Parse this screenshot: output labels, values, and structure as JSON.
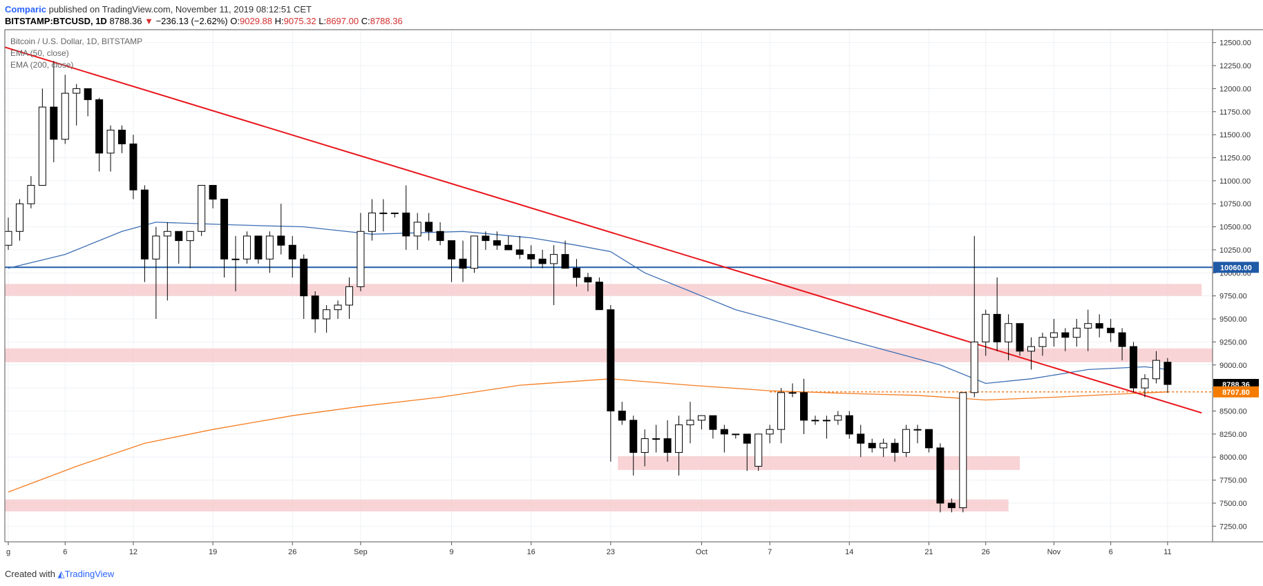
{
  "header": {
    "author": "Comparic",
    "published": "published on TradingView.com, November 11, 2019 08:12:51 CET",
    "symbol": "BITSTAMP:BTCUSD, 1D",
    "last": "8788.36",
    "change": "−236.13 (−2.62%)",
    "o_label": "O:",
    "o": "9029.88",
    "h_label": "H:",
    "h": "9075.32",
    "l_label": "L:",
    "l": "8697.00",
    "c_label": "C:",
    "c": "8788.36"
  },
  "footer": {
    "created": "Created with",
    "brand": "TradingView"
  },
  "colors": {
    "ema50": "#3c6eb4",
    "ema200": "#f57c20",
    "trend": "#e8151b",
    "hline": "#1f5aa6",
    "zone": "#f5c6c8",
    "bull": "#ffffff",
    "bear": "#000000",
    "last_tag": "#000000",
    "ema_tag": "#f57c00",
    "hline_tag": "#1f5aa6"
  },
  "chart_data": {
    "type": "candlestick",
    "title": "Bitcoin / U.S. Dollar, 1D, BITSTAMP",
    "legend": [
      "EMA (50, close)",
      "EMA (200, close)"
    ],
    "yaxis": {
      "ylim": [
        7080,
        12640
      ],
      "ticks": [
        "12500.00",
        "12250.00",
        "12000.00",
        "11750.00",
        "11500.00",
        "11250.00",
        "11000.00",
        "10750.00",
        "10500.00",
        "10250.00",
        "10000.00",
        "9750.00",
        "9500.00",
        "9250.00",
        "9000.00",
        "8750.00",
        "8500.00",
        "8250.00",
        "8000.00",
        "7750.00",
        "7500.00",
        "7250.00"
      ]
    },
    "xaxis": {
      "ticks": [
        {
          "label": "g",
          "day": 0
        },
        {
          "label": "6",
          "day": 5
        },
        {
          "label": "12",
          "day": 11
        },
        {
          "label": "19",
          "day": 18
        },
        {
          "label": "26",
          "day": 25
        },
        {
          "label": "Sep",
          "day": 31
        },
        {
          "label": "9",
          "day": 39
        },
        {
          "label": "16",
          "day": 46
        },
        {
          "label": "23",
          "day": 53
        },
        {
          "label": "Oct",
          "day": 61
        },
        {
          "label": "7",
          "day": 67
        },
        {
          "label": "14",
          "day": 74
        },
        {
          "label": "21",
          "day": 81
        },
        {
          "label": "26",
          "day": 86
        },
        {
          "label": "Nov",
          "day": 92
        },
        {
          "label": "6",
          "day": 97
        },
        {
          "label": "11",
          "day": 102
        }
      ]
    },
    "candles": [
      [
        10300,
        10600,
        10250,
        10450
      ],
      [
        10450,
        10800,
        10350,
        10750
      ],
      [
        10750,
        11050,
        10700,
        10950
      ],
      [
        10950,
        12000,
        10950,
        11800
      ],
      [
        11800,
        12300,
        11200,
        11450
      ],
      [
        11450,
        12150,
        11400,
        11950
      ],
      [
        11950,
        12050,
        11600,
        12000
      ],
      [
        12000,
        12000,
        11700,
        11880
      ],
      [
        11880,
        11900,
        11100,
        11300
      ],
      [
        11300,
        11600,
        11100,
        11550
      ],
      [
        11550,
        11600,
        11300,
        11400
      ],
      [
        11400,
        11500,
        10800,
        10900
      ],
      [
        10900,
        10950,
        9900,
        10150
      ],
      [
        10150,
        10500,
        9500,
        10400
      ],
      [
        10400,
        10550,
        9700,
        10450
      ],
      [
        10450,
        10450,
        10100,
        10350
      ],
      [
        10350,
        10400,
        10050,
        10450
      ],
      [
        10450,
        10950,
        10400,
        10950
      ],
      [
        10950,
        10950,
        10700,
        10800
      ],
      [
        10800,
        10800,
        9950,
        10150
      ],
      [
        10150,
        10400,
        9800,
        10150
      ],
      [
        10150,
        10450,
        10100,
        10400
      ],
      [
        10400,
        10400,
        10100,
        10150
      ],
      [
        10150,
        10450,
        10000,
        10400
      ],
      [
        10400,
        10750,
        10200,
        10300
      ],
      [
        10300,
        10400,
        9950,
        10150
      ],
      [
        10150,
        10200,
        9500,
        9750
      ],
      [
        9750,
        9800,
        9350,
        9500
      ],
      [
        9500,
        9650,
        9350,
        9600
      ],
      [
        9600,
        9700,
        9500,
        9650
      ],
      [
        9650,
        9950,
        9500,
        9850
      ],
      [
        9850,
        10650,
        9800,
        10450
      ],
      [
        10450,
        10800,
        10350,
        10650
      ],
      [
        10650,
        10800,
        10450,
        10650
      ],
      [
        10650,
        10650,
        10600,
        10650
      ],
      [
        10650,
        10950,
        10250,
        10400
      ],
      [
        10400,
        10650,
        10250,
        10550
      ],
      [
        10550,
        10650,
        10350,
        10450
      ],
      [
        10450,
        10550,
        10300,
        10350
      ],
      [
        10350,
        10350,
        9900,
        10150
      ],
      [
        10150,
        10350,
        9900,
        10050
      ],
      [
        10050,
        10400,
        10000,
        10400
      ],
      [
        10400,
        10450,
        10250,
        10350
      ],
      [
        10350,
        10450,
        10250,
        10300
      ],
      [
        10300,
        10400,
        10250,
        10250
      ],
      [
        10250,
        10400,
        10150,
        10200
      ],
      [
        10200,
        10300,
        10050,
        10150
      ],
      [
        10150,
        10250,
        10050,
        10100
      ],
      [
        10100,
        10300,
        9650,
        10200
      ],
      [
        10200,
        10350,
        10050,
        10050
      ],
      [
        10050,
        10150,
        9850,
        9950
      ],
      [
        9950,
        10000,
        9800,
        9900
      ],
      [
        9900,
        9950,
        9600,
        9600
      ],
      [
        9600,
        9650,
        7950,
        8500
      ],
      [
        8500,
        8600,
        8350,
        8400
      ],
      [
        8400,
        8450,
        7800,
        8050
      ],
      [
        8050,
        8300,
        7900,
        8200
      ],
      [
        8200,
        8350,
        8050,
        8200
      ],
      [
        8200,
        8400,
        7950,
        8050
      ],
      [
        8050,
        8450,
        7800,
        8350
      ],
      [
        8350,
        8600,
        8150,
        8400
      ],
      [
        8400,
        8450,
        8300,
        8450
      ],
      [
        8450,
        8450,
        8200,
        8300
      ],
      [
        8300,
        8350,
        8050,
        8250
      ],
      [
        8250,
        8250,
        8200,
        8250
      ],
      [
        8250,
        8250,
        7850,
        8150
      ],
      [
        7900,
        8200,
        7850,
        8250
      ],
      [
        8250,
        8350,
        8150,
        8300
      ],
      [
        8300,
        8750,
        8150,
        8700
      ],
      [
        8700,
        8800,
        8650,
        8700
      ],
      [
        8700,
        8850,
        8250,
        8400
      ],
      [
        8400,
        8450,
        8350,
        8400
      ],
      [
        8400,
        8450,
        8200,
        8400
      ],
      [
        8400,
        8500,
        8350,
        8450
      ],
      [
        8450,
        8500,
        8200,
        8250
      ],
      [
        8250,
        8350,
        8000,
        8150
      ],
      [
        8150,
        8200,
        8050,
        8100
      ],
      [
        8100,
        8200,
        8000,
        8150
      ],
      [
        8150,
        8200,
        7950,
        8050
      ],
      [
        8050,
        8350,
        8000,
        8300
      ],
      [
        8300,
        8350,
        8150,
        8300
      ],
      [
        8300,
        8300,
        8050,
        8100
      ],
      [
        8100,
        8150,
        7400,
        7500
      ],
      [
        7500,
        7550,
        7400,
        7450
      ],
      [
        7450,
        8700,
        7400,
        8700
      ],
      [
        8700,
        10400,
        8650,
        9250
      ],
      [
        9250,
        9600,
        9100,
        9550
      ],
      [
        9550,
        9950,
        9150,
        9250
      ],
      [
        9250,
        9550,
        9050,
        9450
      ],
      [
        9450,
        9450,
        9100,
        9150
      ],
      [
        9150,
        9300,
        8950,
        9200
      ],
      [
        9200,
        9350,
        9100,
        9300
      ],
      [
        9300,
        9500,
        9200,
        9350
      ],
      [
        9350,
        9400,
        9150,
        9300
      ],
      [
        9300,
        9500,
        9200,
        9400
      ],
      [
        9400,
        9600,
        9150,
        9450
      ],
      [
        9450,
        9550,
        9300,
        9400
      ],
      [
        9400,
        9500,
        9250,
        9350
      ],
      [
        9350,
        9400,
        9050,
        9200
      ],
      [
        9200,
        9250,
        8700,
        8750
      ],
      [
        8750,
        8900,
        8650,
        8850
      ],
      [
        8850,
        9150,
        8800,
        9050
      ],
      [
        9030,
        9075,
        8697,
        8788
      ]
    ],
    "ema50": [
      [
        0,
        10050
      ],
      [
        5,
        10200
      ],
      [
        10,
        10450
      ],
      [
        13,
        10550
      ],
      [
        20,
        10520
      ],
      [
        26,
        10500
      ],
      [
        32,
        10420
      ],
      [
        40,
        10450
      ],
      [
        46,
        10380
      ],
      [
        50,
        10300
      ],
      [
        53,
        10230
      ],
      [
        56,
        10000
      ],
      [
        60,
        9800
      ],
      [
        64,
        9600
      ],
      [
        70,
        9400
      ],
      [
        76,
        9200
      ],
      [
        82,
        9000
      ],
      [
        86,
        8800
      ],
      [
        90,
        8850
      ],
      [
        95,
        8950
      ],
      [
        100,
        8980
      ],
      [
        102,
        8950
      ]
    ],
    "ema200": [
      [
        0,
        7620
      ],
      [
        6,
        7900
      ],
      [
        12,
        8150
      ],
      [
        18,
        8300
      ],
      [
        25,
        8450
      ],
      [
        31,
        8550
      ],
      [
        38,
        8650
      ],
      [
        45,
        8780
      ],
      [
        53,
        8850
      ],
      [
        60,
        8780
      ],
      [
        67,
        8720
      ],
      [
        74,
        8690
      ],
      [
        80,
        8670
      ],
      [
        86,
        8620
      ],
      [
        92,
        8650
      ],
      [
        97,
        8680
      ],
      [
        102,
        8707.8
      ]
    ],
    "trendline": [
      [
        0,
        12450
      ],
      [
        105,
        8480
      ]
    ],
    "hline": {
      "value": 10060,
      "label": "10060.00"
    },
    "zones": [
      {
        "from_day": 0,
        "to_day": 105,
        "low": 9750,
        "high": 9880
      },
      {
        "from_day": 0,
        "to_day": 107,
        "low": 9030,
        "high": 9180
      },
      {
        "from_day": 54,
        "to_day": 89,
        "low": 7860,
        "high": 8010
      },
      {
        "from_day": 0,
        "to_day": 88,
        "low": 7410,
        "high": 7540
      }
    ],
    "last_price": {
      "value": 8788.36,
      "label": "8788.36"
    },
    "ema_price": {
      "value": 8707.8,
      "label": "8707.80"
    }
  }
}
